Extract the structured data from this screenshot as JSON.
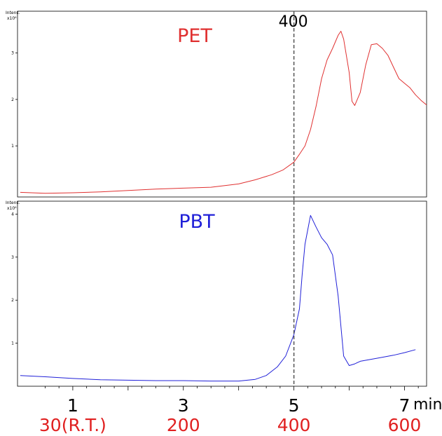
{
  "chart_data": [
    {
      "type": "line",
      "title": "PET",
      "series": [
        {
          "name": "PET",
          "color": "#e03030",
          "x": [
            0.05,
            0.5,
            1.0,
            1.5,
            2.0,
            2.5,
            3.0,
            3.5,
            4.0,
            4.3,
            4.6,
            4.8,
            5.0,
            5.1,
            5.2,
            5.3,
            5.4,
            5.5,
            5.6,
            5.7,
            5.8,
            5.85,
            5.9,
            6.0,
            6.05,
            6.1,
            6.2,
            6.3,
            6.4,
            6.5,
            6.6,
            6.7,
            6.8,
            6.9,
            7.0,
            7.1,
            7.2,
            7.3,
            7.4
          ],
          "y": [
            0.0,
            -0.02,
            -0.01,
            0.01,
            0.04,
            0.07,
            0.09,
            0.11,
            0.18,
            0.27,
            0.38,
            0.48,
            0.65,
            0.82,
            1.0,
            1.35,
            1.85,
            2.45,
            2.85,
            3.1,
            3.38,
            3.47,
            3.3,
            2.58,
            1.96,
            1.87,
            2.15,
            2.75,
            3.18,
            3.2,
            3.1,
            2.95,
            2.7,
            2.45,
            2.35,
            2.25,
            2.1,
            1.98,
            1.88
          ]
        }
      ],
      "xlim": [
        0,
        7.4
      ],
      "ylim": [
        -0.1,
        3.9
      ],
      "yticks": [
        1,
        2,
        3
      ],
      "ylabel_small_line1": "Intens.",
      "ylabel_small_line2": "x10⁶",
      "marker": {
        "x": 5.0,
        "label": "400"
      }
    },
    {
      "type": "line",
      "title": "PBT",
      "series": [
        {
          "name": "PBT",
          "color": "#2020d8",
          "x": [
            0.05,
            0.5,
            1.0,
            1.5,
            2.0,
            2.5,
            3.0,
            3.5,
            4.0,
            4.3,
            4.5,
            4.7,
            4.85,
            5.0,
            5.1,
            5.15,
            5.2,
            5.3,
            5.4,
            5.5,
            5.6,
            5.7,
            5.8,
            5.9,
            6.0,
            6.1,
            6.2,
            6.5,
            6.8,
            7.0,
            7.2
          ],
          "y": [
            0.25,
            0.22,
            0.18,
            0.15,
            0.14,
            0.13,
            0.13,
            0.12,
            0.12,
            0.16,
            0.25,
            0.45,
            0.7,
            1.2,
            1.8,
            2.6,
            3.3,
            3.97,
            3.7,
            3.45,
            3.3,
            3.05,
            2.1,
            0.7,
            0.48,
            0.52,
            0.58,
            0.65,
            0.72,
            0.78,
            0.85
          ]
        }
      ],
      "xlim": [
        0,
        7.4
      ],
      "ylim": [
        0,
        4.3
      ],
      "yticks": [
        1,
        2,
        3,
        4
      ],
      "ylabel_small_line1": "Intens.",
      "ylabel_small_line2": "x10⁶",
      "marker": {
        "x": 5.0,
        "label": ""
      }
    }
  ],
  "x_axis": {
    "ticks": [
      {
        "x": 1,
        "label": "1",
        "temp": "30(R.T.)"
      },
      {
        "x": 3,
        "label": "3",
        "temp": "200"
      },
      {
        "x": 5,
        "label": "5",
        "temp": "400"
      },
      {
        "x": 7,
        "label": "7",
        "temp": "600"
      }
    ],
    "unit": "min",
    "temp_color": "#e02020"
  }
}
